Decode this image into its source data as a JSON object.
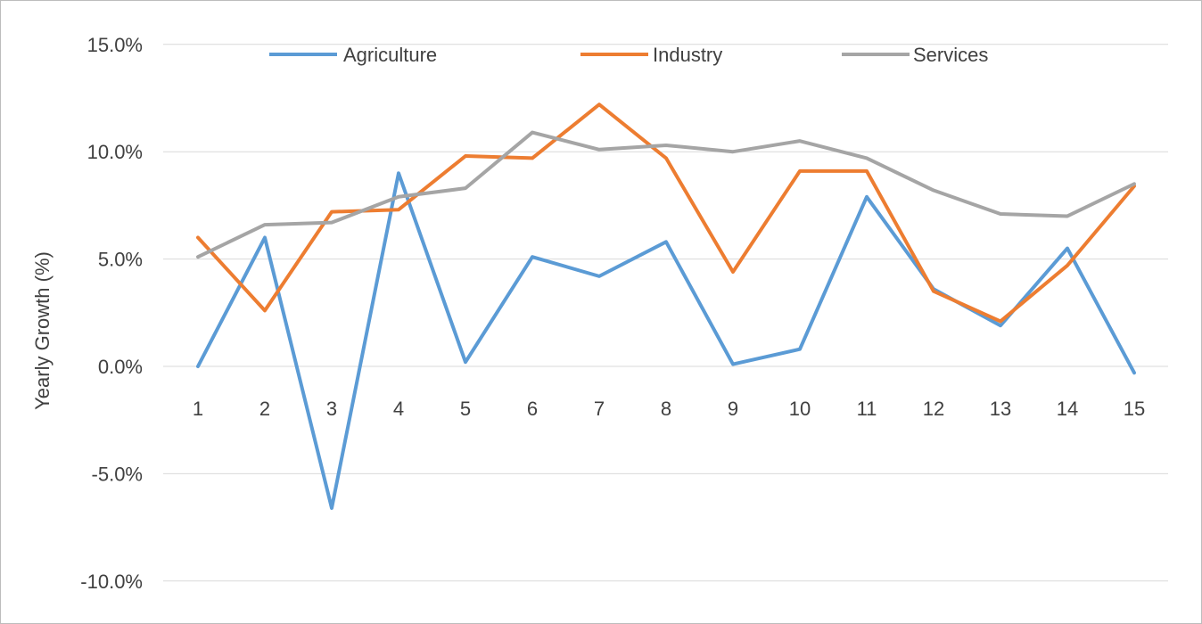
{
  "chart_data": {
    "type": "line",
    "title": "",
    "xlabel": "",
    "ylabel": "Yearly Growth (%)",
    "x": [
      1,
      2,
      3,
      4,
      5,
      6,
      7,
      8,
      9,
      10,
      11,
      12,
      13,
      14,
      15
    ],
    "ylim": [
      -10.0,
      15.0
    ],
    "yticks": [
      "15.0%",
      "10.0%",
      "5.0%",
      "0.0%",
      "-5.0%",
      "-10.0%"
    ],
    "ytick_values": [
      15,
      10,
      5,
      0,
      -5,
      -10
    ],
    "grid": true,
    "legend_position": "top",
    "series": [
      {
        "name": "Agriculture",
        "color": "#5b9bd5",
        "values": [
          0.0,
          6.0,
          -6.6,
          9.0,
          0.2,
          5.1,
          4.2,
          5.8,
          0.1,
          0.8,
          7.9,
          3.6,
          1.9,
          5.5,
          -0.3
        ]
      },
      {
        "name": "Industry",
        "color": "#ed7d31",
        "values": [
          6.0,
          2.6,
          7.2,
          7.3,
          9.8,
          9.7,
          12.2,
          9.7,
          4.4,
          9.1,
          9.1,
          3.5,
          2.1,
          4.7,
          8.4
        ]
      },
      {
        "name": "Services",
        "color": "#a5a5a5",
        "values": [
          5.1,
          6.6,
          6.7,
          7.9,
          8.3,
          10.9,
          10.1,
          10.3,
          10.0,
          10.5,
          9.7,
          8.2,
          7.1,
          7.0,
          8.5
        ]
      }
    ]
  }
}
